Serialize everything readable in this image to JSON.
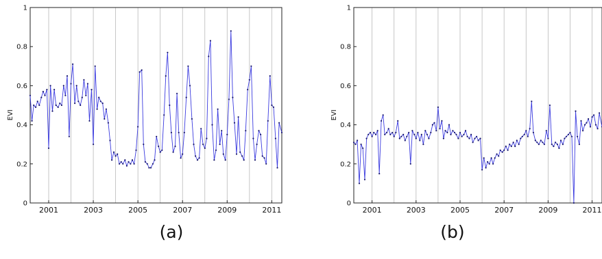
{
  "captions": [
    "(a)",
    "(b)"
  ],
  "colors": {
    "series": "#3a3adf",
    "grid": "#b8b8b8",
    "axis": "#222222"
  },
  "chart_data": [
    {
      "type": "line",
      "caption": "(a)",
      "ylabel": "EVI",
      "xlabel": "",
      "title": "",
      "ylim": [
        0,
        1
      ],
      "yticks": [
        0,
        0.2,
        0.4,
        0.6,
        0.8,
        1
      ],
      "ytick_labels": [
        "0",
        "0.2",
        "0.4",
        "0.6",
        "0.8",
        "1"
      ],
      "xlim": [
        2000.17,
        2011.45
      ],
      "xticks": [
        2001,
        2003,
        2005,
        2007,
        2009,
        2011
      ],
      "xtick_labels": [
        "2001",
        "2003",
        "2005",
        "2007",
        "2009",
        "2011"
      ],
      "x_gridlines": [
        2001,
        2002,
        2003,
        2004,
        2005,
        2006,
        2007,
        2008,
        2009,
        2010,
        2011
      ],
      "grid": "vertical",
      "series": [
        {
          "x": [
            2000.17,
            2000.25,
            2000.33,
            2000.42,
            2000.5,
            2000.58,
            2000.67,
            2000.75,
            2000.83,
            2000.92,
            2001.0,
            2001.08,
            2001.17,
            2001.25,
            2001.33,
            2001.42,
            2001.5,
            2001.58,
            2001.67,
            2001.75,
            2001.83,
            2001.92,
            2002.0,
            2002.08,
            2002.17,
            2002.25,
            2002.33,
            2002.42,
            2002.5,
            2002.58,
            2002.67,
            2002.75,
            2002.83,
            2002.92,
            2003.0,
            2003.08,
            2003.17,
            2003.25,
            2003.33,
            2003.42,
            2003.5,
            2003.58,
            2003.67,
            2003.75,
            2003.83,
            2003.92,
            2004.0,
            2004.08,
            2004.17,
            2004.25,
            2004.33,
            2004.42,
            2004.5,
            2004.58,
            2004.67,
            2004.75,
            2004.83,
            2004.92,
            2005.0,
            2005.08,
            2005.17,
            2005.25,
            2005.33,
            2005.42,
            2005.5,
            2005.58,
            2005.67,
            2005.75,
            2005.83,
            2005.92,
            2006.0,
            2006.08,
            2006.17,
            2006.25,
            2006.33,
            2006.42,
            2006.5,
            2006.58,
            2006.67,
            2006.75,
            2006.83,
            2006.92,
            2007.0,
            2007.08,
            2007.17,
            2007.25,
            2007.33,
            2007.42,
            2007.5,
            2007.58,
            2007.67,
            2007.75,
            2007.83,
            2007.92,
            2008.0,
            2008.08,
            2008.17,
            2008.25,
            2008.33,
            2008.42,
            2008.5,
            2008.58,
            2008.67,
            2008.75,
            2008.83,
            2008.92,
            2009.0,
            2009.08,
            2009.17,
            2009.25,
            2009.33,
            2009.42,
            2009.5,
            2009.58,
            2009.67,
            2009.75,
            2009.83,
            2009.92,
            2010.0,
            2010.08,
            2010.17,
            2010.25,
            2010.33,
            2010.42,
            2010.5,
            2010.58,
            2010.67,
            2010.75,
            2010.83,
            2010.92,
            2011.0,
            2011.08,
            2011.17,
            2011.25,
            2011.33,
            2011.45
          ],
          "values": [
            0.55,
            0.42,
            0.5,
            0.49,
            0.52,
            0.5,
            0.54,
            0.57,
            0.55,
            0.58,
            0.28,
            0.6,
            0.47,
            0.58,
            0.5,
            0.49,
            0.51,
            0.5,
            0.6,
            0.55,
            0.65,
            0.34,
            0.61,
            0.71,
            0.51,
            0.6,
            0.52,
            0.5,
            0.54,
            0.63,
            0.55,
            0.61,
            0.42,
            0.58,
            0.3,
            0.7,
            0.48,
            0.54,
            0.52,
            0.51,
            0.43,
            0.48,
            0.41,
            0.32,
            0.22,
            0.26,
            0.24,
            0.25,
            0.2,
            0.21,
            0.2,
            0.22,
            0.19,
            0.21,
            0.2,
            0.22,
            0.2,
            0.27,
            0.39,
            0.67,
            0.68,
            0.3,
            0.21,
            0.2,
            0.18,
            0.18,
            0.2,
            0.22,
            0.34,
            0.29,
            0.26,
            0.27,
            0.45,
            0.65,
            0.77,
            0.5,
            0.36,
            0.26,
            0.29,
            0.56,
            0.36,
            0.23,
            0.25,
            0.36,
            0.54,
            0.7,
            0.6,
            0.43,
            0.3,
            0.24,
            0.22,
            0.23,
            0.38,
            0.3,
            0.28,
            0.33,
            0.75,
            0.83,
            0.4,
            0.22,
            0.27,
            0.48,
            0.3,
            0.37,
            0.25,
            0.22,
            0.35,
            0.53,
            0.88,
            0.54,
            0.41,
            0.25,
            0.44,
            0.26,
            0.24,
            0.22,
            0.37,
            0.58,
            0.63,
            0.7,
            0.33,
            0.22,
            0.3,
            0.37,
            0.35,
            0.24,
            0.23,
            0.2,
            0.42,
            0.65,
            0.5,
            0.49,
            0.33,
            0.18,
            0.41,
            0.36
          ]
        }
      ]
    },
    {
      "type": "line",
      "caption": "(b)",
      "ylabel": "EVI",
      "xlabel": "",
      "title": "",
      "ylim": [
        0,
        1
      ],
      "yticks": [
        0,
        0.2,
        0.4,
        0.6,
        0.8,
        1
      ],
      "ytick_labels": [
        "0",
        "0.2",
        "0.4",
        "0.6",
        "0.8",
        "1"
      ],
      "xlim": [
        2000.17,
        2011.45
      ],
      "xticks": [
        2001,
        2003,
        2005,
        2007,
        2009,
        2011
      ],
      "xtick_labels": [
        "2001",
        "2003",
        "2005",
        "2007",
        "2009",
        "2011"
      ],
      "x_gridlines": [
        2001,
        2002,
        2003,
        2004,
        2005,
        2006,
        2007,
        2008,
        2009,
        2010,
        2011
      ],
      "grid": "vertical",
      "series": [
        {
          "x": [
            2000.17,
            2000.25,
            2000.33,
            2000.42,
            2000.5,
            2000.58,
            2000.67,
            2000.75,
            2000.83,
            2000.92,
            2001.0,
            2001.08,
            2001.17,
            2001.25,
            2001.33,
            2001.42,
            2001.5,
            2001.58,
            2001.67,
            2001.75,
            2001.83,
            2001.92,
            2002.0,
            2002.08,
            2002.17,
            2002.25,
            2002.33,
            2002.42,
            2002.5,
            2002.58,
            2002.67,
            2002.75,
            2002.83,
            2002.92,
            2003.0,
            2003.08,
            2003.17,
            2003.25,
            2003.33,
            2003.42,
            2003.5,
            2003.58,
            2003.67,
            2003.75,
            2003.83,
            2003.92,
            2004.0,
            2004.08,
            2004.17,
            2004.25,
            2004.33,
            2004.42,
            2004.5,
            2004.58,
            2004.67,
            2004.75,
            2004.83,
            2004.92,
            2005.0,
            2005.08,
            2005.17,
            2005.25,
            2005.33,
            2005.42,
            2005.5,
            2005.58,
            2005.67,
            2005.75,
            2005.83,
            2005.92,
            2006.0,
            2006.08,
            2006.17,
            2006.25,
            2006.33,
            2006.42,
            2006.5,
            2006.58,
            2006.67,
            2006.75,
            2006.83,
            2006.92,
            2007.0,
            2007.08,
            2007.17,
            2007.25,
            2007.33,
            2007.42,
            2007.5,
            2007.58,
            2007.67,
            2007.75,
            2007.83,
            2007.92,
            2008.0,
            2008.08,
            2008.17,
            2008.25,
            2008.33,
            2008.42,
            2008.5,
            2008.58,
            2008.67,
            2008.75,
            2008.83,
            2008.92,
            2009.0,
            2009.08,
            2009.17,
            2009.25,
            2009.33,
            2009.42,
            2009.5,
            2009.58,
            2009.67,
            2009.75,
            2009.83,
            2009.92,
            2010.0,
            2010.08,
            2010.17,
            2010.25,
            2010.33,
            2010.42,
            2010.5,
            2010.58,
            2010.67,
            2010.75,
            2010.83,
            2010.92,
            2011.0,
            2011.08,
            2011.17,
            2011.25,
            2011.33,
            2011.45
          ],
          "values": [
            0.31,
            0.3,
            0.32,
            0.1,
            0.3,
            0.28,
            0.12,
            0.33,
            0.35,
            0.36,
            0.34,
            0.36,
            0.35,
            0.37,
            0.15,
            0.42,
            0.45,
            0.35,
            0.36,
            0.38,
            0.35,
            0.36,
            0.34,
            0.36,
            0.42,
            0.33,
            0.34,
            0.35,
            0.32,
            0.34,
            0.36,
            0.2,
            0.37,
            0.35,
            0.33,
            0.36,
            0.32,
            0.35,
            0.3,
            0.37,
            0.35,
            0.33,
            0.36,
            0.4,
            0.41,
            0.37,
            0.49,
            0.38,
            0.42,
            0.33,
            0.37,
            0.36,
            0.4,
            0.35,
            0.37,
            0.36,
            0.35,
            0.33,
            0.36,
            0.34,
            0.35,
            0.37,
            0.34,
            0.33,
            0.35,
            0.31,
            0.33,
            0.34,
            0.32,
            0.33,
            0.17,
            0.23,
            0.18,
            0.21,
            0.2,
            0.23,
            0.2,
            0.23,
            0.25,
            0.24,
            0.27,
            0.26,
            0.27,
            0.29,
            0.27,
            0.3,
            0.29,
            0.31,
            0.29,
            0.32,
            0.3,
            0.33,
            0.34,
            0.35,
            0.37,
            0.34,
            0.38,
            0.52,
            0.36,
            0.32,
            0.31,
            0.3,
            0.32,
            0.31,
            0.3,
            0.37,
            0.33,
            0.5,
            0.3,
            0.29,
            0.31,
            0.3,
            0.28,
            0.32,
            0.3,
            0.33,
            0.34,
            0.35,
            0.36,
            0.34,
            0.0,
            0.47,
            0.34,
            0.3,
            0.42,
            0.37,
            0.4,
            0.41,
            0.43,
            0.39,
            0.44,
            0.45,
            0.4,
            0.38,
            0.46,
            0.39
          ]
        }
      ]
    }
  ]
}
